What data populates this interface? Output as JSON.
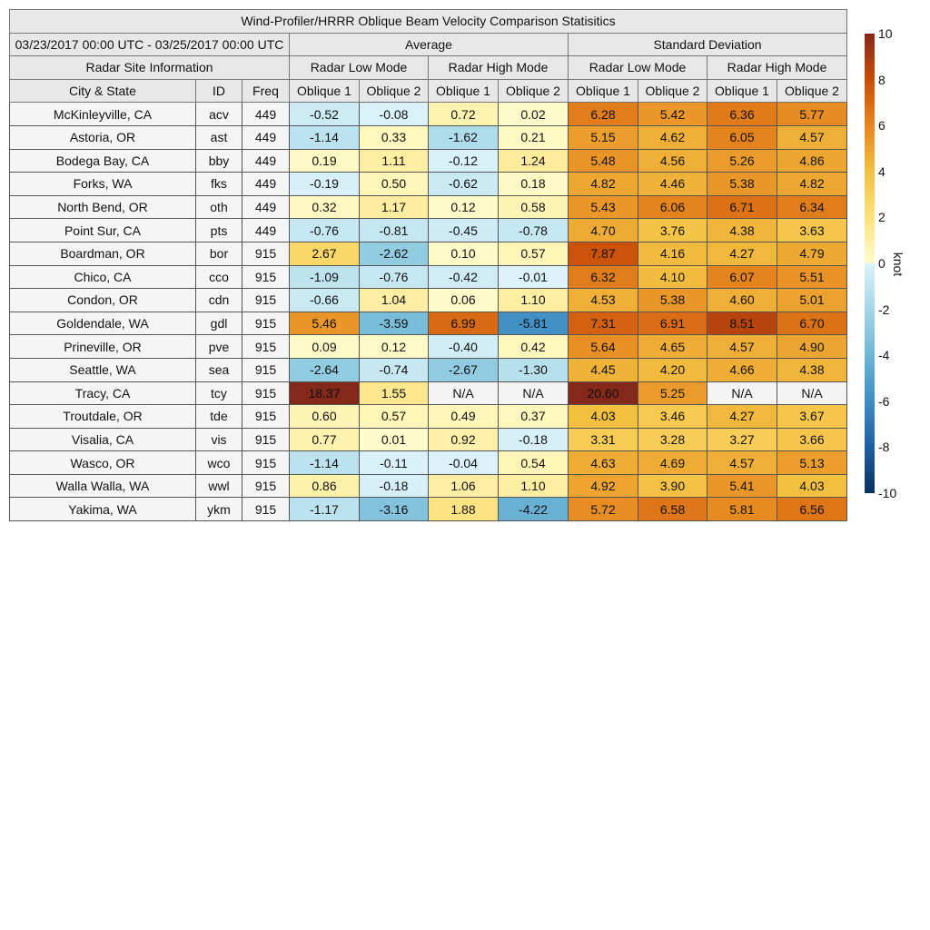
{
  "title": "Wind-Profiler/HRRR Oblique Beam Velocity Comparison Statisitics",
  "date_range": "03/23/2017 00:00 UTC - 03/25/2017 00:00 UTC",
  "group_average": "Average",
  "group_std": "Standard Deviation",
  "site_info": "Radar Site Information",
  "modes": [
    "Radar Low Mode",
    "Radar High Mode",
    "Radar Low Mode",
    "Radar High Mode"
  ],
  "columns": [
    "City & State",
    "ID",
    "Freq",
    "Oblique 1",
    "Oblique 2",
    "Oblique 1",
    "Oblique 2",
    "Oblique 1",
    "Oblique 2",
    "Oblique 1",
    "Oblique 2"
  ],
  "chart_data": {
    "type": "heatmap",
    "colorbar": {
      "label": "knot",
      "range": [
        -10,
        10
      ],
      "ticks": [
        "10",
        "8",
        "6",
        "4",
        "2",
        "0",
        "-2",
        "-4",
        "-6",
        "-8",
        "-10"
      ],
      "stops": [
        [
          -10,
          "#08305e"
        ],
        [
          -8,
          "#1d5fa3"
        ],
        [
          -6,
          "#3d8cc4"
        ],
        [
          -4,
          "#6db6d6"
        ],
        [
          -2,
          "#a3d6e6"
        ],
        [
          0,
          "#dcf3fa"
        ],
        [
          0.001,
          "#fffccc"
        ],
        [
          2,
          "#fde27e"
        ],
        [
          4,
          "#f3c040"
        ],
        [
          6,
          "#e6851e"
        ],
        [
          8,
          "#c94e08"
        ],
        [
          10,
          "#84281a"
        ]
      ]
    },
    "na_color": "#f4f4f4",
    "rows": [
      {
        "city": "McKinleyville, CA",
        "id": "acv",
        "freq": "449",
        "values": [
          "-0.52",
          "-0.08",
          "0.72",
          "0.02",
          "6.28",
          "5.42",
          "6.36",
          "5.77"
        ]
      },
      {
        "city": "Astoria, OR",
        "id": "ast",
        "freq": "449",
        "values": [
          "-1.14",
          "0.33",
          "-1.62",
          "0.21",
          "5.15",
          "4.62",
          "6.05",
          "4.57"
        ]
      },
      {
        "city": "Bodega Bay, CA",
        "id": "bby",
        "freq": "449",
        "values": [
          "0.19",
          "1.11",
          "-0.12",
          "1.24",
          "5.48",
          "4.56",
          "5.26",
          "4.86"
        ]
      },
      {
        "city": "Forks, WA",
        "id": "fks",
        "freq": "449",
        "values": [
          "-0.19",
          "0.50",
          "-0.62",
          "0.18",
          "4.82",
          "4.46",
          "5.38",
          "4.82"
        ]
      },
      {
        "city": "North Bend, OR",
        "id": "oth",
        "freq": "449",
        "values": [
          "0.32",
          "1.17",
          "0.12",
          "0.58",
          "5.43",
          "6.06",
          "6.71",
          "6.34"
        ]
      },
      {
        "city": "Point Sur, CA",
        "id": "pts",
        "freq": "449",
        "values": [
          "-0.76",
          "-0.81",
          "-0.45",
          "-0.78",
          "4.70",
          "3.76",
          "4.38",
          "3.63"
        ]
      },
      {
        "city": "Boardman, OR",
        "id": "bor",
        "freq": "915",
        "values": [
          "2.67",
          "-2.62",
          "0.10",
          "0.57",
          "7.87",
          "4.16",
          "4.27",
          "4.79"
        ]
      },
      {
        "city": "Chico, CA",
        "id": "cco",
        "freq": "915",
        "values": [
          "-1.09",
          "-0.76",
          "-0.42",
          "-0.01",
          "6.32",
          "4.10",
          "6.07",
          "5.51"
        ]
      },
      {
        "city": "Condon, OR",
        "id": "cdn",
        "freq": "915",
        "values": [
          "-0.66",
          "1.04",
          "0.06",
          "1.10",
          "4.53",
          "5.38",
          "4.60",
          "5.01"
        ]
      },
      {
        "city": "Goldendale, WA",
        "id": "gdl",
        "freq": "915",
        "values": [
          "5.46",
          "-3.59",
          "6.99",
          "-5.81",
          "7.31",
          "6.91",
          "8.51",
          "6.70"
        ]
      },
      {
        "city": "Prineville, OR",
        "id": "pve",
        "freq": "915",
        "values": [
          "0.09",
          "0.12",
          "-0.40",
          "0.42",
          "5.64",
          "4.65",
          "4.57",
          "4.90"
        ]
      },
      {
        "city": "Seattle, WA",
        "id": "sea",
        "freq": "915",
        "values": [
          "-2.64",
          "-0.74",
          "-2.67",
          "-1.30",
          "4.45",
          "4.20",
          "4.66",
          "4.38"
        ]
      },
      {
        "city": "Tracy, CA",
        "id": "tcy",
        "freq": "915",
        "values": [
          "18.37",
          "1.55",
          "N/A",
          "N/A",
          "20.60",
          "5.25",
          "N/A",
          "N/A"
        ]
      },
      {
        "city": "Troutdale, OR",
        "id": "tde",
        "freq": "915",
        "values": [
          "0.60",
          "0.57",
          "0.49",
          "0.37",
          "4.03",
          "3.46",
          "4.27",
          "3.67"
        ]
      },
      {
        "city": "Visalia, CA",
        "id": "vis",
        "freq": "915",
        "values": [
          "0.77",
          "0.01",
          "0.92",
          "-0.18",
          "3.31",
          "3.28",
          "3.27",
          "3.66"
        ]
      },
      {
        "city": "Wasco, OR",
        "id": "wco",
        "freq": "915",
        "values": [
          "-1.14",
          "-0.11",
          "-0.04",
          "0.54",
          "4.63",
          "4.69",
          "4.57",
          "5.13"
        ]
      },
      {
        "city": "Walla Walla, WA",
        "id": "wwl",
        "freq": "915",
        "values": [
          "0.86",
          "-0.18",
          "1.06",
          "1.10",
          "4.92",
          "3.90",
          "5.41",
          "4.03"
        ]
      },
      {
        "city": "Yakima, WA",
        "id": "ykm",
        "freq": "915",
        "values": [
          "-1.17",
          "-3.16",
          "1.88",
          "-4.22",
          "5.72",
          "6.58",
          "5.81",
          "6.56"
        ]
      }
    ]
  }
}
